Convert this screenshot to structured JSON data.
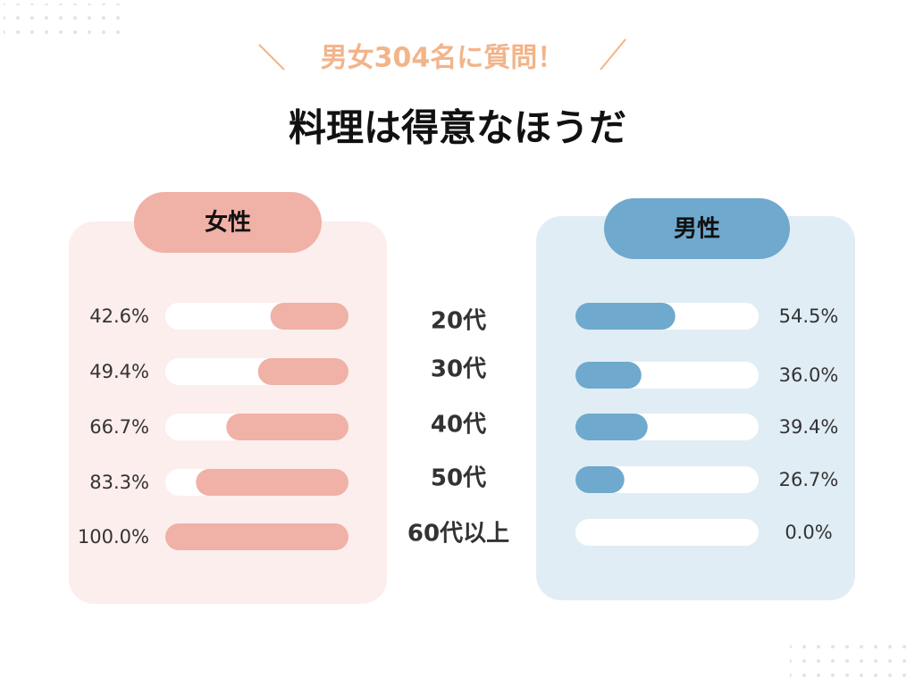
{
  "chart_data": {
    "type": "bar",
    "subtitle": "男女304名に質問！",
    "title": "料理は得意なほうだ",
    "categories": [
      "20代",
      "30代",
      "40代",
      "50代",
      "60代以上"
    ],
    "xlim": [
      0,
      100
    ],
    "series": [
      {
        "name": "女性",
        "color": "#f0b1a7",
        "values": [
          42.6,
          49.4,
          66.7,
          83.3,
          100.0
        ],
        "value_labels": [
          "42.6%",
          "49.4%",
          "66.7%",
          "83.3%",
          "100.0%"
        ]
      },
      {
        "name": "男性",
        "color": "#6fa9cd",
        "values": [
          54.5,
          36.0,
          39.4,
          26.7,
          0.0
        ],
        "value_labels": [
          "54.5%",
          "36.0%",
          "39.4%",
          "26.7%",
          "0.0%"
        ]
      }
    ]
  }
}
